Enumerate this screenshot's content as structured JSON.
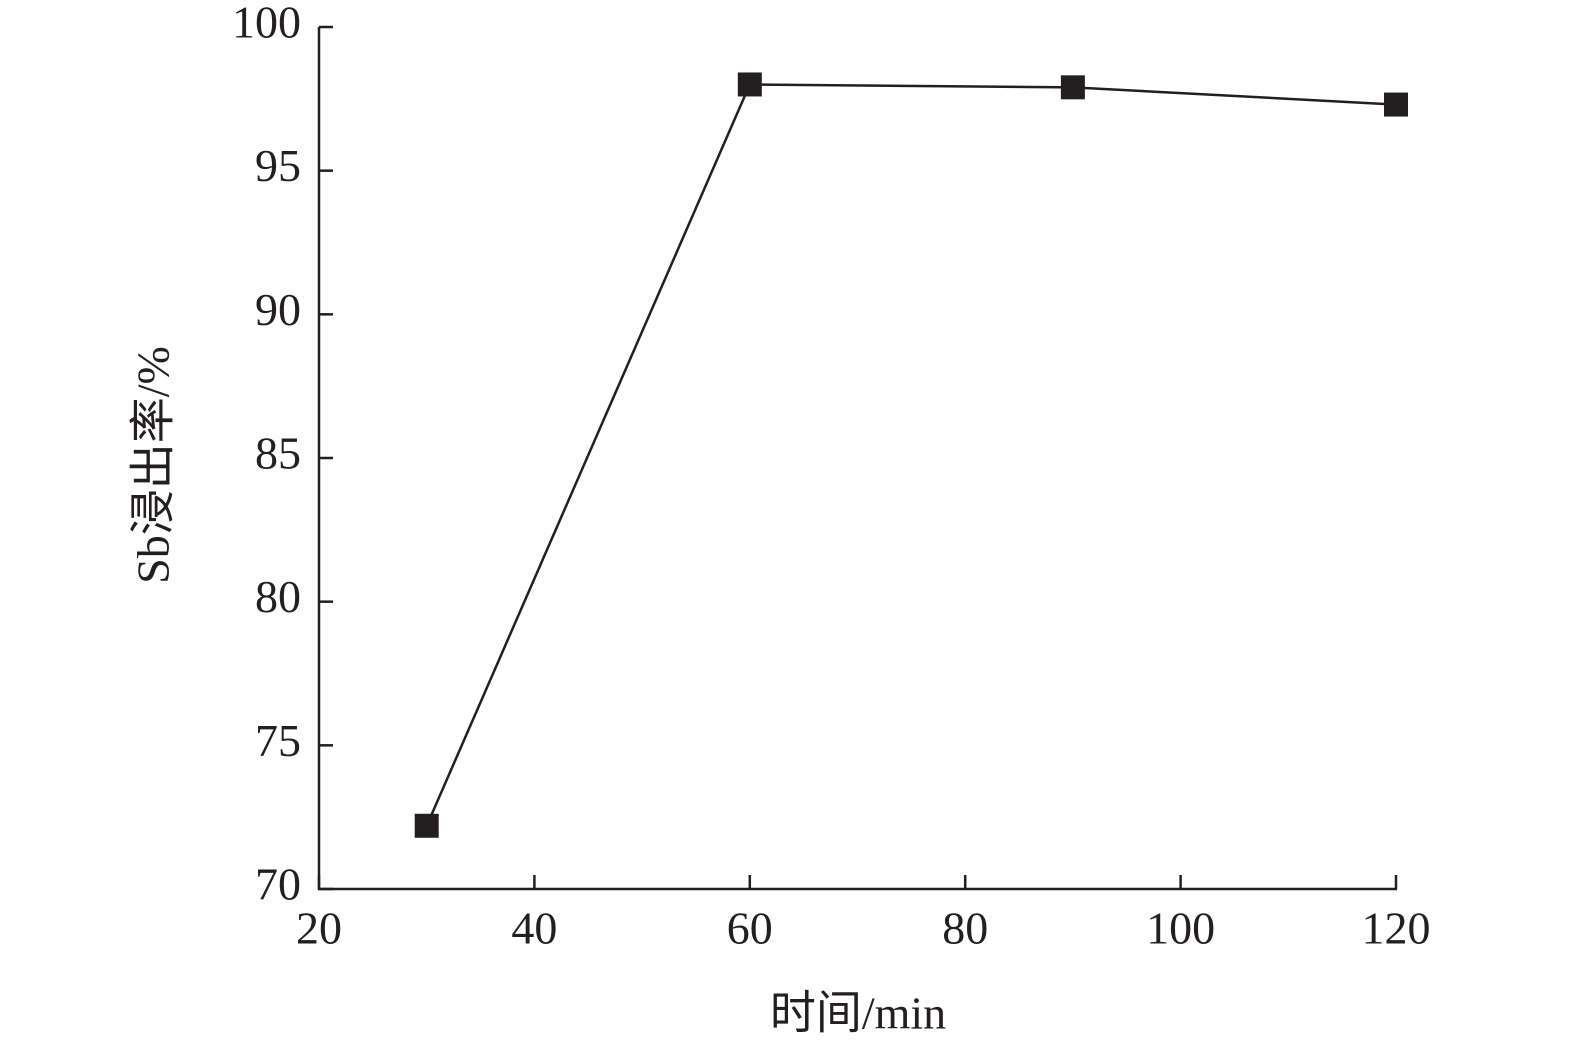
{
  "chart_data": {
    "type": "line",
    "x_label": "时间/min",
    "y_label": "Sb浸出率/%",
    "x": [
      30,
      60,
      90,
      120
    ],
    "series": [
      {
        "name": "Sb",
        "color": "#231f20",
        "values": [
          72.2,
          98.0,
          97.9,
          97.3
        ]
      }
    ],
    "xlim": [
      20,
      120
    ],
    "xticks": [
      20,
      40,
      60,
      80,
      100,
      120
    ],
    "ylim": [
      70,
      100
    ],
    "yticks": [
      70,
      75,
      80,
      85,
      90,
      95,
      100
    ],
    "grid": false,
    "legend": false,
    "marker": "square"
  }
}
